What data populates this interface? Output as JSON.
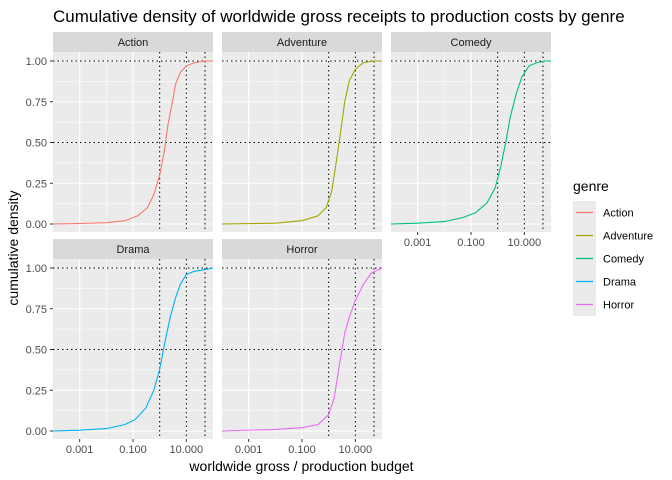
{
  "chart_data": {
    "type": "line",
    "title": "Cumulative density of worldwide gross receipts to production costs by genre",
    "xlabel": "worldwide gross / production budget",
    "ylabel": "cumulative density",
    "x_scale": "log10",
    "xlim": [
      0.0001,
      100
    ],
    "ylim": [
      0,
      1
    ],
    "x_ticks": [
      {
        "value": 0.001,
        "label": "0.001"
      },
      {
        "value": 0.1,
        "label": "0.100"
      },
      {
        "value": 10,
        "label": "10.000"
      }
    ],
    "y_ticks": [
      {
        "value": 0,
        "label": "0.00"
      },
      {
        "value": 0.25,
        "label": "0.25"
      },
      {
        "value": 0.5,
        "label": "0.50"
      },
      {
        "value": 0.75,
        "label": "0.75"
      },
      {
        "value": 1,
        "label": "1.00"
      }
    ],
    "reference_lines": {
      "vertical": [
        1,
        10,
        50
      ],
      "horizontal": [
        0.5,
        1
      ]
    },
    "grid": true,
    "legend": {
      "title": "genre",
      "position": "right"
    },
    "series": [
      {
        "name": "Action",
        "color": "#F8766D",
        "points": [
          [
            0.0001,
            0.0
          ],
          [
            0.001,
            0.003
          ],
          [
            0.01,
            0.008
          ],
          [
            0.05,
            0.02
          ],
          [
            0.15,
            0.05
          ],
          [
            0.35,
            0.1
          ],
          [
            0.6,
            0.18
          ],
          [
            1.0,
            0.3
          ],
          [
            1.5,
            0.45
          ],
          [
            2.0,
            0.6
          ],
          [
            3.0,
            0.75
          ],
          [
            4.0,
            0.86
          ],
          [
            6.0,
            0.93
          ],
          [
            10,
            0.97
          ],
          [
            20,
            0.99
          ],
          [
            50,
            1.0
          ],
          [
            100,
            1.0
          ]
        ]
      },
      {
        "name": "Adventure",
        "color": "#A3A500",
        "points": [
          [
            0.0001,
            0.0
          ],
          [
            0.01,
            0.005
          ],
          [
            0.1,
            0.02
          ],
          [
            0.4,
            0.05
          ],
          [
            0.8,
            0.1
          ],
          [
            1.3,
            0.2
          ],
          [
            2.0,
            0.4
          ],
          [
            3.0,
            0.6
          ],
          [
            4.0,
            0.75
          ],
          [
            6.0,
            0.88
          ],
          [
            10,
            0.95
          ],
          [
            20,
            0.99
          ],
          [
            50,
            1.0
          ],
          [
            100,
            1.0
          ]
        ]
      },
      {
        "name": "Comedy",
        "color": "#00BF7D",
        "points": [
          [
            0.0001,
            0.0
          ],
          [
            0.001,
            0.005
          ],
          [
            0.01,
            0.015
          ],
          [
            0.05,
            0.04
          ],
          [
            0.15,
            0.07
          ],
          [
            0.4,
            0.13
          ],
          [
            0.8,
            0.22
          ],
          [
            1.3,
            0.35
          ],
          [
            2.0,
            0.5
          ],
          [
            3.0,
            0.66
          ],
          [
            5.0,
            0.8
          ],
          [
            8,
            0.9
          ],
          [
            15,
            0.97
          ],
          [
            30,
            0.99
          ],
          [
            60,
            1.0
          ],
          [
            100,
            1.0
          ]
        ]
      },
      {
        "name": "Drama",
        "color": "#00B0F6",
        "points": [
          [
            0.0001,
            0.0
          ],
          [
            0.001,
            0.005
          ],
          [
            0.01,
            0.015
          ],
          [
            0.05,
            0.04
          ],
          [
            0.12,
            0.07
          ],
          [
            0.3,
            0.14
          ],
          [
            0.6,
            0.25
          ],
          [
            1.0,
            0.38
          ],
          [
            1.6,
            0.55
          ],
          [
            2.5,
            0.7
          ],
          [
            4,
            0.82
          ],
          [
            6,
            0.9
          ],
          [
            10,
            0.96
          ],
          [
            20,
            0.98
          ],
          [
            50,
            0.99
          ],
          [
            100,
            1.0
          ]
        ]
      },
      {
        "name": "Horror",
        "color": "#E76BF3",
        "points": [
          [
            0.0001,
            0.0
          ],
          [
            0.01,
            0.01
          ],
          [
            0.1,
            0.02
          ],
          [
            0.4,
            0.04
          ],
          [
            1.0,
            0.1
          ],
          [
            1.6,
            0.2
          ],
          [
            2.5,
            0.4
          ],
          [
            4,
            0.6
          ],
          [
            6,
            0.7
          ],
          [
            10,
            0.8
          ],
          [
            20,
            0.9
          ],
          [
            40,
            0.97
          ],
          [
            100,
            1.0
          ]
        ]
      }
    ]
  },
  "facets": [
    {
      "label": "Action",
      "series": "Action"
    },
    {
      "label": "Adventure",
      "series": "Adventure"
    },
    {
      "label": "Comedy",
      "series": "Comedy"
    },
    {
      "label": "Drama",
      "series": "Drama"
    },
    {
      "label": "Horror",
      "series": "Horror"
    }
  ]
}
